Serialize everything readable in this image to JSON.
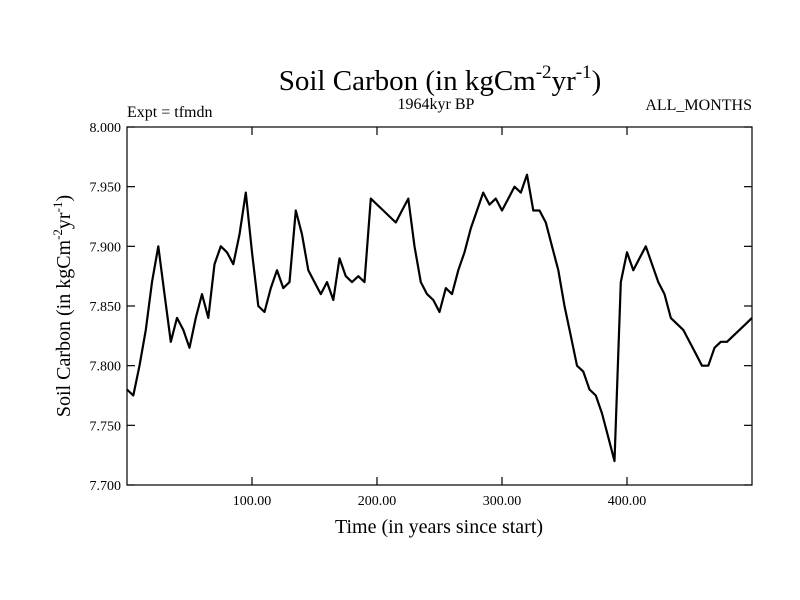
{
  "chart_data": {
    "type": "line",
    "title_main": "Soil Carbon (in kgCm",
    "title_sup1": "-2",
    "title_mid": "yr",
    "title_sup2": "-1",
    "title_end": ")",
    "subtitle": "1964kyr BP",
    "left_label": "Expt = tfmdn",
    "right_label": "ALL_MONTHS",
    "xlabel": "Time (in years since start)",
    "ylabel_main": "Soil Carbon (in kgCm",
    "ylabel_sup1": "-2",
    "ylabel_mid": "yr",
    "ylabel_sup2": "-1",
    "ylabel_end": ")",
    "xlim": [
      0,
      500
    ],
    "ylim": [
      7.7,
      8.0
    ],
    "x_ticks": [
      100,
      200,
      300,
      400
    ],
    "x_tick_labels": [
      "100.00",
      "200.00",
      "300.00",
      "400.00"
    ],
    "y_ticks": [
      7.7,
      7.75,
      7.8,
      7.85,
      7.9,
      7.95,
      8.0
    ],
    "y_tick_labels": [
      "7.700",
      "7.750",
      "7.800",
      "7.850",
      "7.900",
      "7.950",
      "8.000"
    ],
    "color": "#000000",
    "series": [
      {
        "name": "Soil Carbon",
        "x": [
          0,
          5,
          10,
          15,
          20,
          25,
          30,
          35,
          40,
          45,
          50,
          55,
          60,
          65,
          70,
          75,
          80,
          85,
          90,
          95,
          100,
          105,
          110,
          115,
          120,
          125,
          130,
          135,
          140,
          145,
          150,
          155,
          160,
          165,
          170,
          175,
          180,
          185,
          190,
          195,
          200,
          205,
          210,
          215,
          220,
          225,
          230,
          235,
          240,
          245,
          250,
          255,
          260,
          265,
          270,
          275,
          280,
          285,
          290,
          295,
          300,
          305,
          310,
          315,
          320,
          325,
          330,
          335,
          340,
          345,
          350,
          355,
          360,
          365,
          370,
          375,
          380,
          385,
          390,
          395,
          400,
          405,
          410,
          415,
          420,
          425,
          430,
          435,
          440,
          445,
          450,
          455,
          460,
          465,
          470,
          475,
          480,
          485,
          490,
          495,
          500
        ],
        "values": [
          7.78,
          7.775,
          7.8,
          7.83,
          7.87,
          7.9,
          7.86,
          7.82,
          7.84,
          7.83,
          7.815,
          7.84,
          7.86,
          7.84,
          7.885,
          7.9,
          7.895,
          7.885,
          7.91,
          7.945,
          7.895,
          7.85,
          7.845,
          7.865,
          7.88,
          7.865,
          7.87,
          7.93,
          7.91,
          7.88,
          7.87,
          7.86,
          7.87,
          7.855,
          7.89,
          7.875,
          7.87,
          7.875,
          7.87,
          7.94,
          7.935,
          7.93,
          7.925,
          7.92,
          7.93,
          7.94,
          7.9,
          7.87,
          7.86,
          7.855,
          7.845,
          7.865,
          7.86,
          7.88,
          7.895,
          7.915,
          7.93,
          7.945,
          7.935,
          7.94,
          7.93,
          7.94,
          7.95,
          7.945,
          7.96,
          7.93,
          7.93,
          7.92,
          7.9,
          7.88,
          7.85,
          7.825,
          7.8,
          7.795,
          7.78,
          7.775,
          7.76,
          7.74,
          7.72,
          7.87,
          7.895,
          7.88,
          7.89,
          7.9,
          7.885,
          7.87,
          7.86,
          7.84,
          7.835,
          7.83,
          7.82,
          7.81,
          7.8,
          7.8,
          7.815,
          7.82,
          7.82,
          7.825,
          7.83,
          7.835,
          7.84
        ]
      }
    ]
  }
}
